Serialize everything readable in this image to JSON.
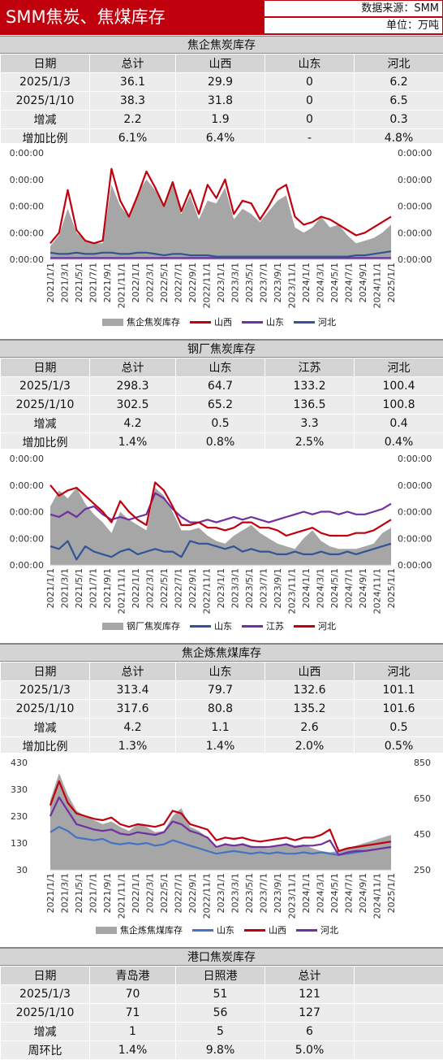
{
  "header": {
    "title": "SMM焦炭、焦煤库存",
    "source": "数据来源：SMM",
    "unit": "单位：万吨"
  },
  "sections": [
    {
      "title": "焦企焦炭库存",
      "columns": [
        "日期",
        "总计",
        "山西",
        "山东",
        "河北"
      ],
      "rows": [
        [
          "2025/1/3",
          "36.1",
          "29.9",
          "0",
          "6.2"
        ],
        [
          "2025/1/10",
          "38.3",
          "31.8",
          "0",
          "6.5"
        ],
        [
          "增减",
          "2.2",
          "1.9",
          "0",
          "0.3"
        ],
        [
          "增加比例",
          "6.1%",
          "6.4%",
          "-",
          "4.8%"
        ]
      ]
    },
    {
      "title": "钢厂焦炭库存",
      "columns": [
        "日期",
        "总计",
        "山东",
        "江苏",
        "河北"
      ],
      "rows": [
        [
          "2025/1/3",
          "298.3",
          "64.7",
          "133.2",
          "100.4"
        ],
        [
          "2025/1/10",
          "302.5",
          "65.2",
          "136.5",
          "100.8"
        ],
        [
          "增减",
          "4.2",
          "0.5",
          "3.3",
          "0.4"
        ],
        [
          "增加比例",
          "1.4%",
          "0.8%",
          "2.5%",
          "0.4%"
        ]
      ]
    },
    {
      "title": "焦企炼焦煤库存",
      "columns": [
        "日期",
        "总计",
        "山东",
        "山西",
        "河北"
      ],
      "rows": [
        [
          "2025/1/3",
          "313.4",
          "79.7",
          "132.6",
          "101.1"
        ],
        [
          "2025/1/10",
          "317.6",
          "80.8",
          "135.2",
          "101.6"
        ],
        [
          "增减",
          "4.2",
          "1.1",
          "2.6",
          "0.5"
        ],
        [
          "增加比例",
          "1.3%",
          "1.4%",
          "2.0%",
          "0.5%"
        ]
      ]
    },
    {
      "title": "港口焦炭库存",
      "columns": [
        "日期",
        "青岛港",
        "日照港",
        "总计",
        ""
      ],
      "rows": [
        [
          "2025/1/3",
          "70",
          "51",
          "121",
          ""
        ],
        [
          "2025/1/10",
          "71",
          "56",
          "127",
          ""
        ],
        [
          "增减",
          "1",
          "5",
          "6",
          ""
        ],
        [
          "周环比",
          "1.4%",
          "9.8%",
          "5.0%",
          ""
        ]
      ]
    }
  ],
  "chart_data": [
    {
      "type": "area",
      "x_ticks": [
        "2021/1/1",
        "2021/3/1",
        "2021/5/1",
        "2021/7/1",
        "2021/9/1",
        "2021/11/1",
        "2022/1/1",
        "2022/3/1",
        "2022/5/1",
        "2022/7/1",
        "2022/9/1",
        "2022/11/1",
        "2023/1/1",
        "2023/3/1",
        "2023/5/1",
        "2023/7/1",
        "2023/9/1",
        "2023/11/1",
        "2024/1/1",
        "2024/3/1",
        "2024/5/1",
        "2024/7/1",
        "2024/9/1",
        "2024/11/1",
        "2025/1/1"
      ],
      "y_left_ticks": [
        "0:00:00",
        "0:00:00",
        "0:00:00",
        "0:00:00",
        "0:00:00"
      ],
      "y_right_ticks": [
        "0:00:00",
        "0:00:00",
        "0:00:00",
        "0:00:00",
        "0:00:00"
      ],
      "ylim": [
        0,
        4
      ],
      "series": [
        {
          "name": "焦企焦炭库存",
          "color": "#a6a6a6",
          "kind": "area",
          "values": [
            0.5,
            0.9,
            1.9,
            1.0,
            0.7,
            0.6,
            0.6,
            2.8,
            2.0,
            1.6,
            2.5,
            3.0,
            2.6,
            2.0,
            2.8,
            1.7,
            2.4,
            1.5,
            2.2,
            2.1,
            2.7,
            1.5,
            1.9,
            1.7,
            1.4,
            1.8,
            2.2,
            2.4,
            1.2,
            1.0,
            1.2,
            1.6,
            1.2,
            1.3,
            0.9,
            0.6,
            0.7,
            0.8,
            1.0,
            1.3
          ]
        },
        {
          "name": "山西",
          "color": "#c0000c",
          "kind": "line",
          "values": [
            0.6,
            1.0,
            2.6,
            1.1,
            0.7,
            0.6,
            0.7,
            3.4,
            2.2,
            1.6,
            2.4,
            3.3,
            2.7,
            2.0,
            2.9,
            1.8,
            2.6,
            1.7,
            2.8,
            2.3,
            3.0,
            1.7,
            2.2,
            2.1,
            1.5,
            2.0,
            2.6,
            2.8,
            1.6,
            1.3,
            1.4,
            1.6,
            1.5,
            1.3,
            1.1,
            0.9,
            1.0,
            1.2,
            1.4,
            1.6
          ]
        },
        {
          "name": "山东",
          "color": "#7030a0",
          "kind": "line",
          "values": [
            0.05,
            0.05,
            0.05,
            0.05,
            0.05,
            0.05,
            0.05,
            0.05,
            0.05,
            0.05,
            0.05,
            0.05,
            0.05,
            0.05,
            0.05,
            0.05,
            0.05,
            0.05,
            0.05,
            0.05,
            0.05,
            0.05,
            0.05,
            0.05,
            0.05,
            0.05,
            0.05,
            0.05,
            0.05,
            0.05,
            0.05,
            0.05,
            0.05,
            0.05,
            0.05,
            0.05,
            0.05,
            0.05,
            0.05,
            0.05
          ]
        },
        {
          "name": "河北",
          "color": "#2f5597",
          "kind": "line",
          "values": [
            0.25,
            0.2,
            0.2,
            0.25,
            0.2,
            0.2,
            0.25,
            0.25,
            0.2,
            0.2,
            0.25,
            0.25,
            0.2,
            0.15,
            0.2,
            0.2,
            0.15,
            0.15,
            0.15,
            0.1,
            0.1,
            0.1,
            0.1,
            0.1,
            0.1,
            0.1,
            0.1,
            0.1,
            0.1,
            0.1,
            0.1,
            0.1,
            0.1,
            0.1,
            0.1,
            0.15,
            0.15,
            0.2,
            0.25,
            0.3
          ]
        }
      ]
    },
    {
      "type": "area",
      "x_ticks": [
        "2021/1/1",
        "2021/3/1",
        "2021/5/1",
        "2021/7/1",
        "2021/9/1",
        "2021/11/1",
        "2022/1/1",
        "2022/3/1",
        "2022/5/1",
        "2022/7/1",
        "2022/9/1",
        "2022/11/1",
        "2023/1/1",
        "2023/3/1",
        "2023/5/1",
        "2023/7/1",
        "2023/9/1",
        "2023/11/1",
        "2024/1/1",
        "2024/3/1",
        "2024/5/1",
        "2024/7/1",
        "2024/9/1",
        "2024/11/1",
        "2025/1/1"
      ],
      "y_left_ticks": [
        "0:00:00",
        "0:00:00",
        "0:00:00",
        "0:00:00",
        "0:00:00"
      ],
      "y_right_ticks": [
        "0:00:00",
        "0:00:00",
        "0:00:00",
        "0:00:00",
        "0:00:00"
      ],
      "ylim": [
        0,
        4
      ],
      "series": [
        {
          "name": "钢厂焦炭库存",
          "color": "#a6a6a6",
          "kind": "area",
          "values": [
            2.2,
            2.8,
            2.5,
            2.9,
            2.3,
            1.9,
            1.6,
            1.2,
            2.0,
            1.7,
            1.5,
            1.3,
            2.9,
            2.6,
            2.0,
            1.3,
            1.3,
            1.4,
            1.1,
            0.9,
            0.8,
            1.1,
            1.3,
            1.5,
            1.2,
            1.0,
            0.8,
            0.7,
            0.6,
            1.0,
            1.3,
            0.9,
            0.7,
            0.6,
            0.6,
            0.6,
            0.7,
            0.8,
            1.2,
            1.4
          ]
        },
        {
          "name": "山东",
          "color": "#2f5597",
          "kind": "line",
          "values": [
            0.7,
            0.6,
            0.9,
            0.2,
            0.7,
            0.5,
            0.4,
            0.3,
            0.5,
            0.6,
            0.4,
            0.5,
            0.6,
            0.5,
            0.5,
            0.3,
            0.9,
            0.8,
            0.8,
            0.7,
            0.6,
            0.7,
            0.5,
            0.6,
            0.5,
            0.5,
            0.4,
            0.4,
            0.5,
            0.4,
            0.4,
            0.5,
            0.4,
            0.4,
            0.5,
            0.4,
            0.5,
            0.6,
            0.7,
            0.8
          ]
        },
        {
          "name": "江苏",
          "color": "#7030a0",
          "kind": "line",
          "values": [
            1.9,
            1.8,
            2.0,
            1.8,
            2.1,
            2.2,
            1.9,
            1.7,
            1.8,
            1.7,
            1.8,
            1.9,
            2.7,
            2.5,
            2.1,
            1.8,
            1.6,
            1.6,
            1.7,
            1.6,
            1.7,
            1.8,
            1.7,
            1.8,
            1.7,
            1.6,
            1.7,
            1.8,
            1.9,
            2.0,
            1.9,
            2.0,
            2.0,
            1.9,
            2.0,
            1.9,
            1.9,
            2.0,
            2.1,
            2.3
          ]
        },
        {
          "name": "河北",
          "color": "#c0000c",
          "kind": "line",
          "values": [
            3.0,
            2.6,
            2.8,
            2.9,
            2.6,
            2.3,
            2.0,
            1.6,
            2.4,
            2.0,
            1.7,
            1.5,
            3.1,
            2.8,
            2.2,
            1.5,
            1.5,
            1.6,
            1.4,
            1.4,
            1.3,
            1.4,
            1.6,
            1.6,
            1.4,
            1.4,
            1.3,
            1.1,
            1.2,
            1.3,
            1.4,
            1.2,
            1.1,
            1.1,
            1.1,
            1.2,
            1.2,
            1.3,
            1.5,
            1.7
          ]
        }
      ]
    },
    {
      "type": "area",
      "x_ticks": [
        "2021/1/1",
        "2021/3/1",
        "2021/5/1",
        "2021/7/1",
        "2021/9/1",
        "2021/11/1",
        "2022/1/1",
        "2022/3/1",
        "2022/5/1",
        "2022/7/1",
        "2022/9/1",
        "2022/11/1",
        "2023/1/1",
        "2023/3/1",
        "2023/5/1",
        "2023/7/1",
        "2023/9/1",
        "2023/11/1",
        "2024/1/1",
        "2024/3/1",
        "2024/5/1",
        "2024/7/1",
        "2024/9/1",
        "2024/11/1",
        "2025/1/1"
      ],
      "y_left_ticks": [
        "430",
        "330",
        "230",
        "130",
        "30"
      ],
      "y_right_ticks": [
        "850",
        "650",
        "450",
        "250"
      ],
      "ylim": [
        30,
        430
      ],
      "series": [
        {
          "name": "焦企炼焦煤库存",
          "color": "#a6a6a6",
          "kind": "area",
          "values": [
            290,
            390,
            310,
            250,
            230,
            215,
            200,
            210,
            190,
            175,
            200,
            190,
            170,
            175,
            230,
            260,
            190,
            175,
            150,
            110,
            130,
            120,
            130,
            120,
            115,
            110,
            120,
            130,
            120,
            125,
            110,
            100,
            95,
            100,
            110,
            120,
            130,
            140,
            150,
            160
          ]
        },
        {
          "name": "山东",
          "color": "#4472c4",
          "kind": "line",
          "values": [
            170,
            190,
            175,
            150,
            145,
            140,
            145,
            130,
            125,
            130,
            125,
            130,
            120,
            125,
            140,
            130,
            120,
            110,
            100,
            90,
            95,
            100,
            95,
            90,
            95,
            90,
            95,
            90,
            90,
            95,
            90,
            95,
            90,
            85,
            90,
            95,
            100,
            105,
            110,
            115
          ]
        },
        {
          "name": "山西",
          "color": "#c0000c",
          "kind": "line",
          "values": [
            270,
            360,
            280,
            240,
            230,
            220,
            215,
            225,
            200,
            190,
            200,
            195,
            190,
            200,
            250,
            240,
            200,
            190,
            180,
            140,
            150,
            145,
            150,
            140,
            135,
            140,
            145,
            150,
            140,
            150,
            150,
            160,
            180,
            100,
            110,
            115,
            120,
            125,
            130,
            135
          ]
        },
        {
          "name": "河北",
          "color": "#7030a0",
          "kind": "line",
          "values": [
            230,
            300,
            250,
            200,
            190,
            180,
            175,
            180,
            165,
            160,
            170,
            165,
            160,
            170,
            210,
            200,
            175,
            165,
            150,
            115,
            125,
            120,
            125,
            115,
            115,
            115,
            120,
            125,
            115,
            120,
            120,
            125,
            140,
            85,
            95,
            100,
            100,
            105,
            110,
            115
          ]
        }
      ]
    }
  ]
}
